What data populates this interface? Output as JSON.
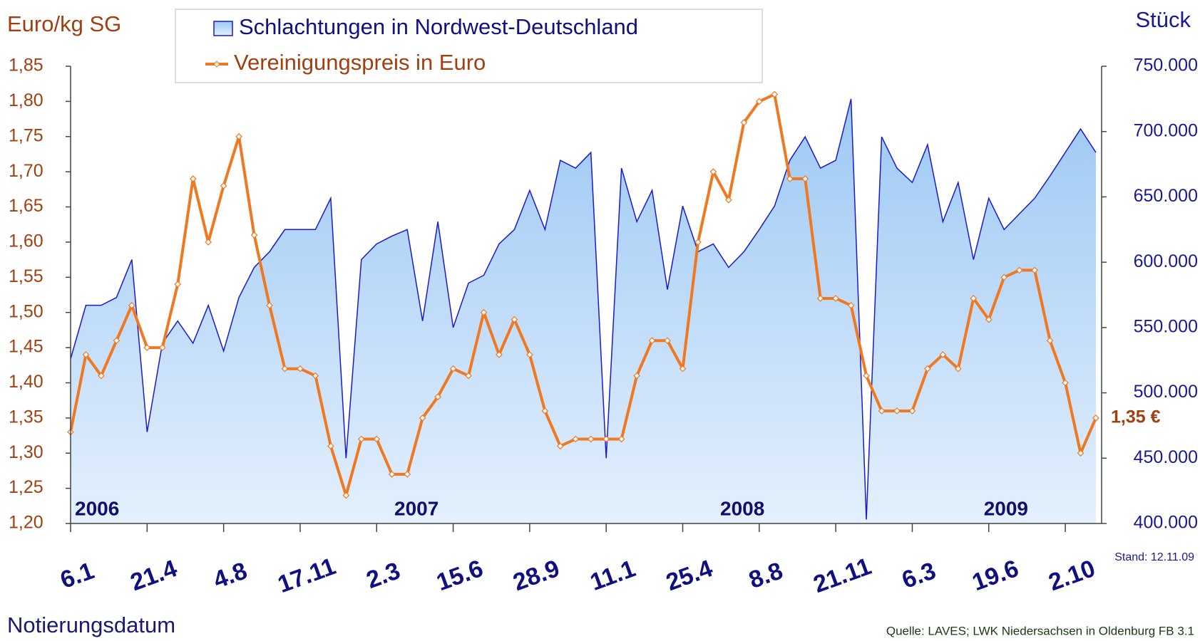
{
  "chart_data": {
    "type": "area-line",
    "ylabel": "Euro/kg SG",
    "y2label": "Stück",
    "xlabel": "Notierungsdatum",
    "stand": "Stand: 12.11.09",
    "source": "Quelle: LAVES; LWK Niedersachsen in Oldenburg FB 3.1",
    "annotations": [
      "2006",
      "2007",
      "2008",
      "2009"
    ],
    "end_label": "1,35 €",
    "categories": [
      "6.1",
      null,
      null,
      null,
      null,
      "21.4",
      null,
      null,
      null,
      null,
      "4.8",
      null,
      null,
      null,
      null,
      "17.11",
      null,
      null,
      null,
      null,
      "2.3",
      null,
      null,
      null,
      null,
      "15.6",
      null,
      null,
      null,
      null,
      "28.9",
      null,
      null,
      null,
      null,
      "11.1",
      null,
      null,
      null,
      null,
      "25.4",
      null,
      null,
      null,
      null,
      "8.8",
      null,
      null,
      null,
      null,
      "21.11",
      null,
      null,
      null,
      null,
      "6.3",
      null,
      null,
      null,
      null,
      "19.6",
      null,
      null,
      null,
      null,
      "2.10",
      null,
      null
    ],
    "series": [
      {
        "name": "Schlachtungen in Nordwest-Deutschland",
        "color": "#1a1ad0",
        "fill": [
          "#9cc8f4",
          "#e4f0fd"
        ],
        "axis": "y2",
        "values": [
          526000,
          567000,
          567000,
          573000,
          602000,
          470000,
          538000,
          555000,
          538000,
          567000,
          532000,
          573000,
          596000,
          608000,
          625000,
          625000,
          625000,
          649000,
          450000,
          602000,
          614000,
          620000,
          625000,
          555000,
          631000,
          550000,
          584000,
          590000,
          614000,
          625000,
          655000,
          625000,
          678000,
          672000,
          684000,
          450000,
          672000,
          631000,
          655000,
          579000,
          643000,
          608000,
          614000,
          596000,
          608000,
          625000,
          643000,
          678000,
          696000,
          672000,
          678000,
          725000,
          403000,
          696000,
          672000,
          661000,
          690000,
          631000,
          661000,
          602000,
          649000,
          625000,
          637000,
          649000,
          666000,
          684000,
          702000,
          684000
        ]
      },
      {
        "name": "Vereinigungspreis in Euro",
        "color": "#f07820",
        "axis": "y",
        "values": [
          1.33,
          1.44,
          1.41,
          1.46,
          1.51,
          1.45,
          1.45,
          1.54,
          1.69,
          1.6,
          1.68,
          1.75,
          1.61,
          1.51,
          1.42,
          1.42,
          1.41,
          1.31,
          1.24,
          1.32,
          1.32,
          1.27,
          1.27,
          1.35,
          1.38,
          1.42,
          1.41,
          1.5,
          1.44,
          1.49,
          1.44,
          1.36,
          1.31,
          1.32,
          1.32,
          1.32,
          1.32,
          1.41,
          1.46,
          1.46,
          1.42,
          1.6,
          1.7,
          1.66,
          1.77,
          1.8,
          1.81,
          1.69,
          1.69,
          1.52,
          1.52,
          1.51,
          1.41,
          1.36,
          1.36,
          1.36,
          1.42,
          1.44,
          1.42,
          1.52,
          1.49,
          1.55,
          1.56,
          1.56,
          1.46,
          1.4,
          1.3,
          1.35
        ]
      }
    ],
    "ylim": [
      1.2,
      1.85
    ],
    "yticks": [
      {
        "value": 1.2,
        "label": "1,20"
      },
      {
        "value": 1.25,
        "label": "1,25"
      },
      {
        "value": 1.3,
        "label": "1,30"
      },
      {
        "value": 1.35,
        "label": "1,35"
      },
      {
        "value": 1.4,
        "label": "1,40"
      },
      {
        "value": 1.45,
        "label": "1,45"
      },
      {
        "value": 1.5,
        "label": "1,50"
      },
      {
        "value": 1.55,
        "label": "1,55"
      },
      {
        "value": 1.6,
        "label": "1,60"
      },
      {
        "value": 1.65,
        "label": "1,65"
      },
      {
        "value": 1.7,
        "label": "1,70"
      },
      {
        "value": 1.75,
        "label": "1,75"
      },
      {
        "value": 1.8,
        "label": "1,80"
      },
      {
        "value": 1.85,
        "label": "1,85"
      }
    ],
    "y2lim": [
      400000,
      750000
    ],
    "y2ticks": [
      {
        "value": 400000,
        "label": "400.000"
      },
      {
        "value": 450000,
        "label": "450.000"
      },
      {
        "value": 500000,
        "label": "500.000"
      },
      {
        "value": 550000,
        "label": "550.000"
      },
      {
        "value": 600000,
        "label": "600.000"
      },
      {
        "value": 650000,
        "label": "650.000"
      },
      {
        "value": 700000,
        "label": "700.000"
      },
      {
        "value": 750000,
        "label": "750.000"
      }
    ]
  }
}
